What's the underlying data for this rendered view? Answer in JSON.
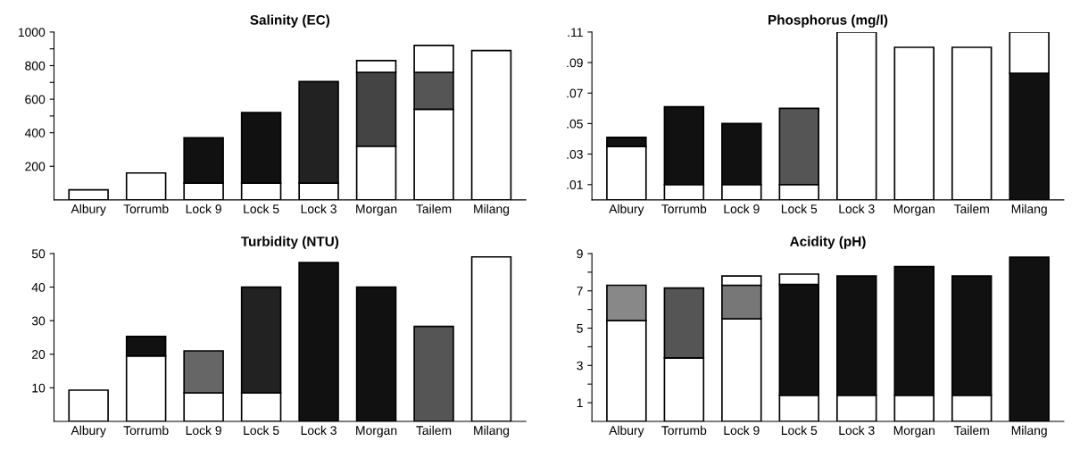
{
  "chart_data": [
    {
      "type": "bar",
      "stacked": true,
      "title": "Salinity (EC)",
      "categories": [
        "Albury",
        "Torrumb",
        "Lock 9",
        "Lock 5",
        "Lock 3",
        "Morgan",
        "Tailem",
        "Milang"
      ],
      "ylim": [
        0,
        1000
      ],
      "yticks": [
        200,
        400,
        {
          "value": 500,
          "label": null
        },
        600,
        {
          "value": 700,
          "label": null
        },
        800,
        {
          "value": 900,
          "label": null
        },
        1000
      ],
      "grid": false,
      "series": [
        {
          "color": "#ffffff",
          "values": [
            60,
            160,
            100,
            100,
            100,
            320,
            540,
            890
          ]
        },
        {
          "colors": [
            "#111111",
            "#111111",
            "#111111",
            "#111111",
            "#222222",
            "#444444",
            "#555555",
            "#111111"
          ],
          "values": [
            null,
            null,
            270,
            420,
            605,
            440,
            220,
            null
          ]
        },
        {
          "color": "#ffffff",
          "values": [
            null,
            null,
            null,
            null,
            null,
            70,
            160,
            null
          ]
        }
      ]
    },
    {
      "type": "bar",
      "stacked": true,
      "title": "Phosphorus (mg/l)",
      "categories": [
        "Albury",
        "Torrumb",
        "Lock 9",
        "Lock 5",
        "Lock 3",
        "Morgan",
        "Tailem",
        "Milang"
      ],
      "ylim": [
        0,
        0.11
      ],
      "yticks": [
        {
          "value": 0.01,
          "label": ".01"
        },
        {
          "value": 0.03,
          "label": ".03"
        },
        {
          "value": 0.05,
          "label": ".05"
        },
        {
          "value": 0.07,
          "label": ".07"
        },
        {
          "value": 0.09,
          "label": ".09"
        },
        {
          "value": 0.11,
          "label": ".11"
        }
      ],
      "grid": false,
      "series": [
        {
          "color": "#ffffff",
          "values": [
            0.035,
            0.01,
            0.01,
            0.01,
            0.11,
            0.1,
            0.1,
            null
          ]
        },
        {
          "colors": [
            "#111111",
            "#111111",
            "#111111",
            "#555555",
            "#111111",
            "#111111",
            "#111111",
            "#111111"
          ],
          "values": [
            0.006,
            0.051,
            0.04,
            0.05,
            null,
            null,
            null,
            0.083
          ]
        },
        {
          "color": "#ffffff",
          "values": [
            null,
            null,
            null,
            null,
            null,
            null,
            null,
            0.027
          ]
        }
      ]
    },
    {
      "type": "bar",
      "stacked": true,
      "title": "Turbidity (NTU)",
      "categories": [
        "Albury",
        "Torrumb",
        "Lock 9",
        "Lock 5",
        "Lock 3",
        "Morgan",
        "Tailem",
        "Milang"
      ],
      "ylim": [
        0,
        50
      ],
      "yticks": [
        10,
        20,
        30,
        40,
        50
      ],
      "grid": false,
      "series": [
        {
          "color": "#ffffff",
          "values": [
            9.3,
            19.5,
            8.5,
            8.5,
            null,
            null,
            null,
            49
          ]
        },
        {
          "colors": [
            "#111111",
            "#111111",
            "#666666",
            "#222222",
            "#111111",
            "#111111",
            "#555555",
            "#111111"
          ],
          "values": [
            null,
            5.8,
            12.5,
            31.5,
            47.3,
            40,
            28.3,
            null
          ]
        }
      ]
    },
    {
      "type": "bar",
      "stacked": true,
      "title": "Acidity (pH)",
      "categories": [
        "Albury",
        "Torrumb",
        "Lock 9",
        "Lock 5",
        "Lock 3",
        "Morgan",
        "Tailem",
        "Milang"
      ],
      "ylim": [
        0,
        9
      ],
      "yticks": [
        1,
        {
          "value": 2,
          "label": null
        },
        3,
        {
          "value": 4,
          "label": null
        },
        5,
        {
          "value": 6,
          "label": null
        },
        7,
        {
          "value": 8,
          "label": null
        },
        9
      ],
      "grid": false,
      "series": [
        {
          "color": "#ffffff",
          "values": [
            5.4,
            3.4,
            5.5,
            1.4,
            1.4,
            1.4,
            1.4,
            null
          ]
        },
        {
          "colors": [
            "#888888",
            "#555555",
            "#777777",
            "#111111",
            "#111111",
            "#111111",
            "#111111",
            "#111111"
          ],
          "values": [
            1.9,
            3.75,
            1.8,
            5.95,
            6.4,
            6.9,
            6.4,
            8.8
          ]
        },
        {
          "color": "#ffffff",
          "values": [
            null,
            null,
            0.5,
            0.55,
            null,
            null,
            null,
            null
          ]
        }
      ]
    }
  ]
}
